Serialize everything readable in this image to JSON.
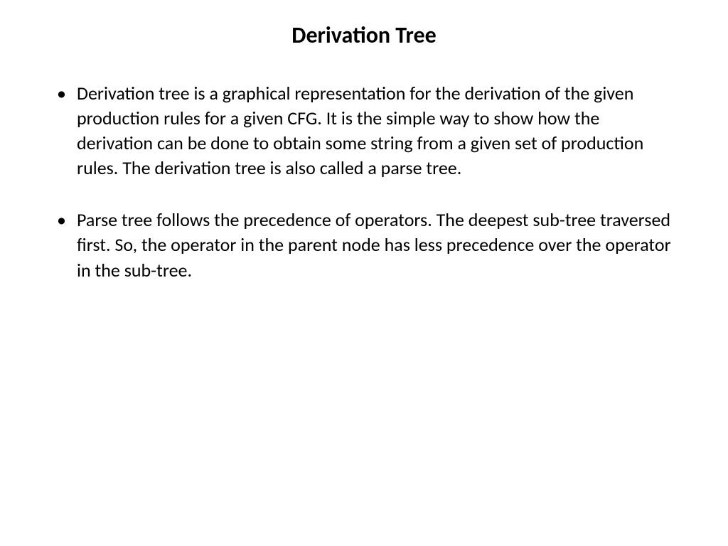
{
  "slide": {
    "title": "Derivation Tree",
    "title_fontsize": 32,
    "title_weight": "bold",
    "title_color": "#000000",
    "body_fontsize": 26,
    "body_color": "#000000",
    "background_color": "#ffffff",
    "bullets": [
      "Derivation tree is a graphical representation for the derivation of the given production rules for a given CFG. It is the simple way to show how the derivation can be done to obtain some string from a given set of production rules. The derivation tree is also called a parse tree.",
      "Parse tree follows the precedence of operators. The deepest sub-tree traversed first. So, the operator in the parent node has less precedence over the operator in the sub-tree."
    ]
  }
}
